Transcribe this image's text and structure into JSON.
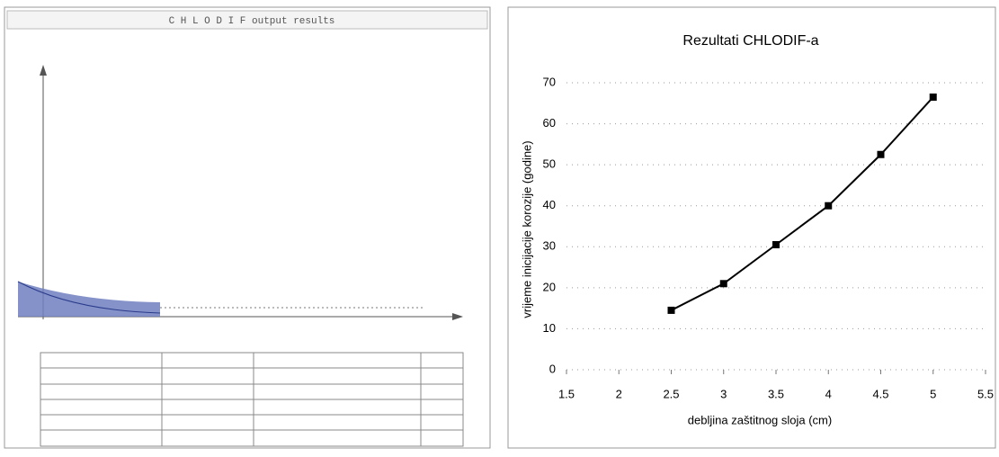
{
  "left_panel": {
    "title": "C H L O D I F   output results"
  },
  "chart_data": {
    "type": "line",
    "title": "Rezultati CHLODIF-a",
    "x_label": "debljina zaštitnog sloja (cm)",
    "y_label": "vrijeme inicijacije korozije (godine)",
    "x": [
      2.5,
      3,
      3.5,
      4,
      4.5,
      5
    ],
    "series": [
      {
        "name": "vrijeme inicijacije korozije",
        "color": "#000000",
        "values": [
          14.5,
          21,
          30.5,
          40,
          52.5,
          66.5
        ]
      }
    ],
    "xlim": [
      1.5,
      5.5
    ],
    "xticks": [
      1.5,
      2,
      2.5,
      3,
      3.5,
      4,
      4.5,
      5,
      5.5
    ],
    "ylim": [
      0,
      70
    ],
    "yticks": [
      0,
      10,
      20,
      30,
      40,
      50,
      60,
      70
    ],
    "grid": true,
    "legend": false
  }
}
